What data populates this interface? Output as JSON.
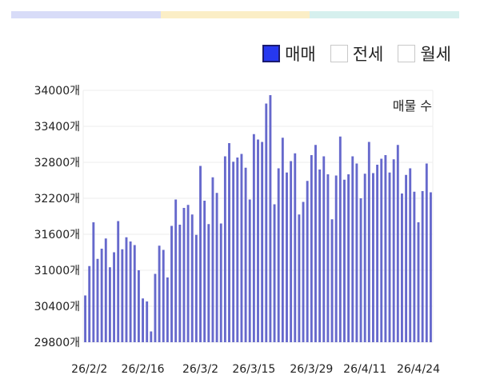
{
  "tabs": [
    {
      "color": "#d8dcf8"
    },
    {
      "color": "#fbeec6"
    },
    {
      "color": "#d6f0ee"
    }
  ],
  "legend": {
    "items": [
      {
        "label": "매매",
        "checked": true
      },
      {
        "label": "전세",
        "checked": false
      },
      {
        "label": "월세",
        "checked": false
      }
    ]
  },
  "chart_data": {
    "type": "bar",
    "annotation": "매물 수",
    "ylim": [
      29800,
      34000
    ],
    "y_ticks": [
      29800,
      30400,
      31000,
      31600,
      32200,
      32800,
      33400,
      34000
    ],
    "y_tick_labels": [
      "29800개",
      "30400개",
      "31000개",
      "31600개",
      "32200개",
      "32800개",
      "33400개",
      "34000개"
    ],
    "x_tick_labels": [
      "26/2/2",
      "26/2/16",
      "26/3/2",
      "26/3/15",
      "26/3/29",
      "26/4/11",
      "26/4/24"
    ],
    "x_tick_indices": [
      1,
      14,
      28,
      41,
      55,
      68,
      81
    ],
    "bar_color": "#6669cc",
    "grid": true,
    "values": [
      30580,
      31070,
      31800,
      31190,
      31360,
      31530,
      31050,
      31300,
      31820,
      31350,
      31550,
      31480,
      31420,
      31000,
      30530,
      30480,
      29980,
      30940,
      31410,
      31340,
      30880,
      31740,
      32180,
      31760,
      32040,
      32090,
      31930,
      31590,
      32740,
      32160,
      31770,
      32550,
      32290,
      31780,
      32900,
      33120,
      32810,
      32880,
      32940,
      32710,
      32180,
      33270,
      33180,
      33140,
      33780,
      33920,
      32100,
      32700,
      33210,
      32630,
      32820,
      32950,
      31930,
      32140,
      32490,
      32920,
      33090,
      32680,
      32900,
      32600,
      31850,
      32580,
      33230,
      32510,
      32600,
      32900,
      32780,
      32200,
      32610,
      33140,
      32620,
      32760,
      32860,
      32920,
      32630,
      32850,
      33090,
      32280,
      32590,
      32700,
      32310,
      31800,
      32320,
      32780,
      32300
    ]
  }
}
